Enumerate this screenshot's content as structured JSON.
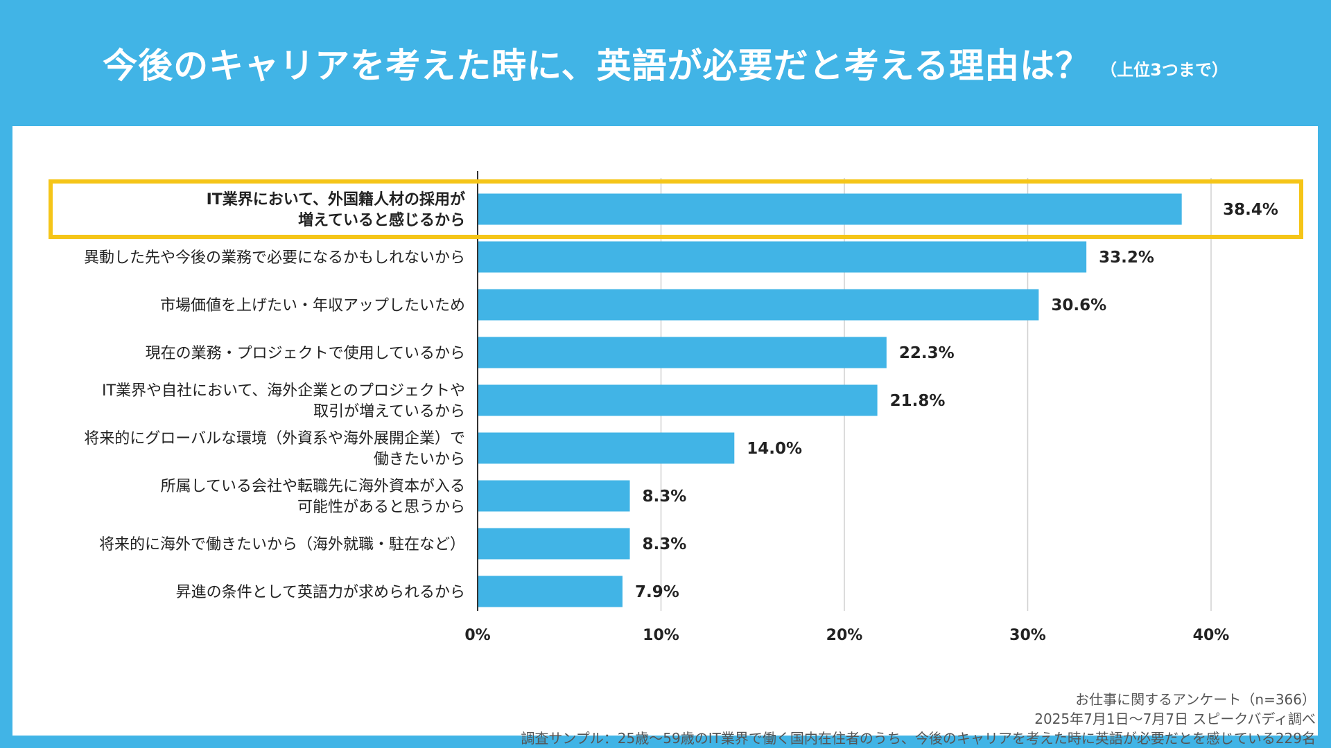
{
  "header": {
    "title": "今後のキャリアを考えた時に、英語が必要だと考える理由は？",
    "note": "（上位3つまで）"
  },
  "colors": {
    "background": "#41b4e6",
    "bar": "#41b4e6",
    "highlight": "#f5c518",
    "grid": "#d0d0d0",
    "text": "#222222"
  },
  "chart_data": {
    "type": "bar",
    "orientation": "horizontal",
    "categories": [
      [
        "IT業界において、外国籍人材の採用が",
        "増えていると感じるから"
      ],
      [
        "異動した先や今後の業務で必要になるかもしれないから"
      ],
      [
        "市場価値を上げたい・年収アップしたいため"
      ],
      [
        "現在の業務・プロジェクトで使用しているから"
      ],
      [
        "IT業界や自社において、海外企業とのプロジェクトや",
        "取引が増えているから"
      ],
      [
        "将来的にグローバルな環境（外資系や海外展開企業）で",
        "働きたいから"
      ],
      [
        "所属している会社や転職先に海外資本が入る",
        "可能性があると思うから"
      ],
      [
        "将来的に海外で働きたいから（海外就職・駐在など）"
      ],
      [
        "昇進の条件として英語力が求められるから"
      ]
    ],
    "values": [
      38.4,
      33.2,
      30.6,
      22.3,
      21.8,
      14.0,
      8.3,
      8.3,
      7.9
    ],
    "value_labels": [
      "38.4%",
      "33.2%",
      "30.6%",
      "22.3%",
      "21.8%",
      "14.0%",
      "8.3%",
      "8.3%",
      "7.9%"
    ],
    "xlim": [
      0,
      40
    ],
    "x_ticks": [
      "0%",
      "10%",
      "20%",
      "30%",
      "40%"
    ],
    "highlighted_index": 0,
    "grid": true
  },
  "footer": {
    "line1": "お仕事に関するアンケート（n=366）",
    "line2": "2025年7月1日〜7月7日 スピークバディ調べ",
    "line3": "調査サンプル：25歳〜59歳のIT業界で働く国内在住者のうち、今後のキャリアを考えた時に英語が必要だとを感じている229名"
  }
}
